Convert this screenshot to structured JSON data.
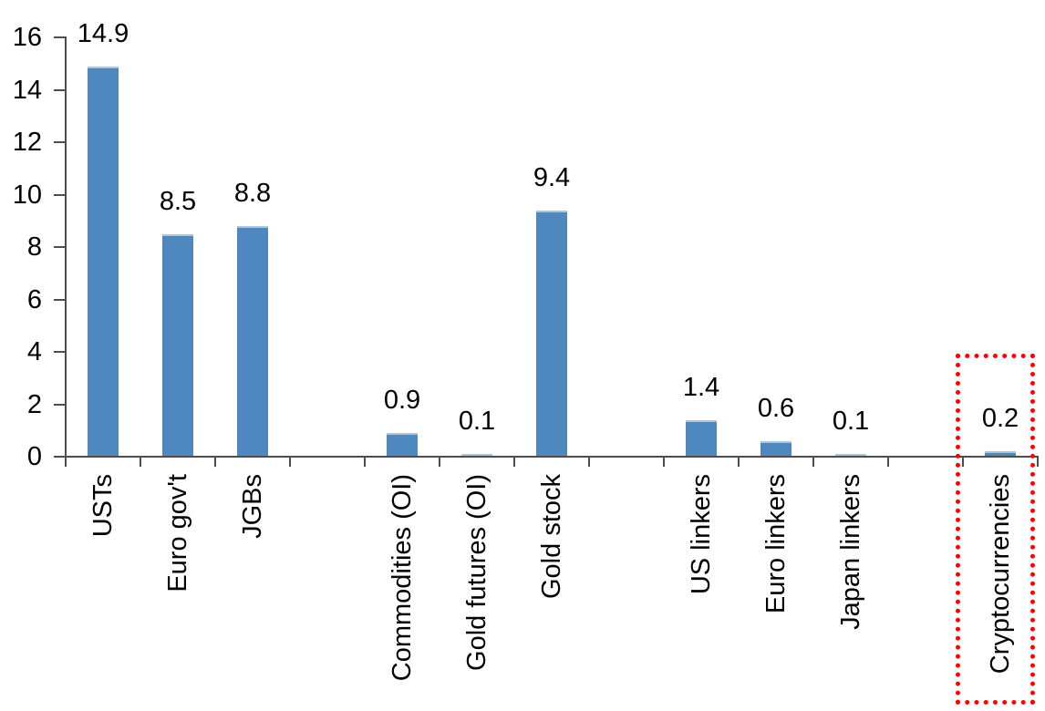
{
  "chart_data": {
    "type": "bar",
    "title": "",
    "xlabel": "",
    "ylabel": "",
    "categories": [
      "USTs",
      "Euro gov't",
      "JGBs",
      "Commodities (OI)",
      "Gold futures (OI)",
      "Gold stock",
      "US linkers",
      "Euro linkers",
      "Japan linkers",
      "Cryptocurrencies"
    ],
    "values": [
      14.9,
      8.5,
      8.8,
      0.9,
      0.1,
      9.4,
      1.4,
      0.6,
      0.1,
      0.2
    ],
    "value_labels": [
      "14.9",
      "8.5",
      "8.8",
      "0.9",
      "0.1",
      "9.4",
      "1.4",
      "0.6",
      "0.1",
      "0.2"
    ],
    "group_slots": [
      0,
      1,
      2,
      4,
      5,
      6,
      8,
      9,
      10,
      12
    ],
    "total_slots": 13,
    "y_axis": {
      "min": 0,
      "max": 16,
      "ticks": [
        0,
        2,
        4,
        6,
        8,
        10,
        12,
        14,
        16
      ]
    },
    "grid": false,
    "legend": "none",
    "colors": {
      "bar": "#4e88be",
      "bar_top_edge": "#aac7df",
      "axis": "#4d4d4d",
      "text": "#000000",
      "background": "#ffffff",
      "highlight": "#ff0000"
    },
    "highlight": {
      "category": "Cryptocurrencies",
      "shape": "dotted-rectangle",
      "color": "#ff0000"
    }
  }
}
